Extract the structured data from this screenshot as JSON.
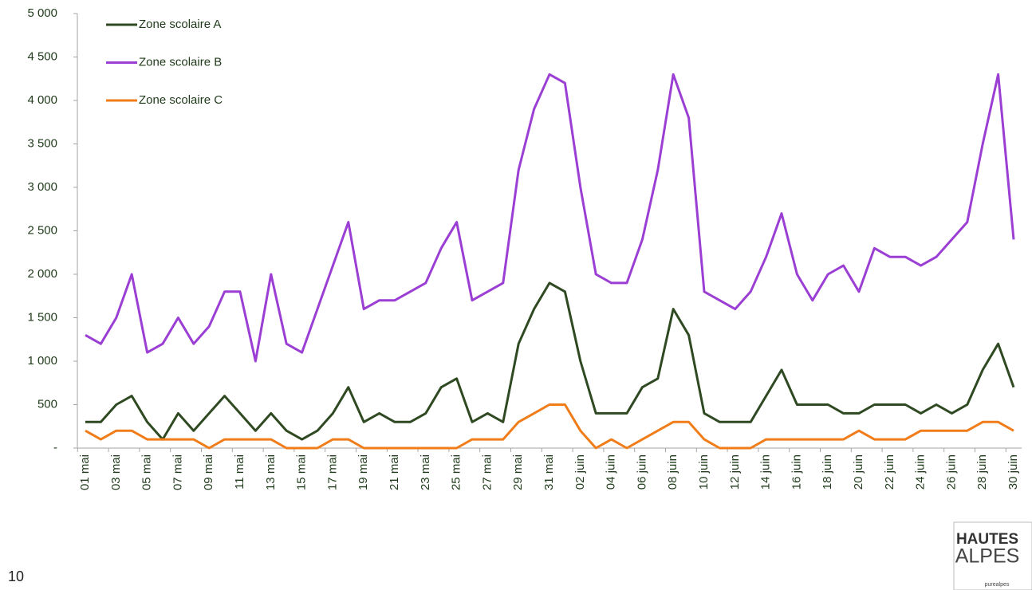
{
  "chart_data": {
    "type": "line",
    "categories": [
      "01 mai",
      null,
      "03 mai",
      null,
      "05 mai",
      null,
      "07 mai",
      null,
      "09 mai",
      null,
      "11 mai",
      null,
      "13 mai",
      null,
      "15 mai",
      null,
      "17 mai",
      null,
      "19 mai",
      null,
      "21 mai",
      null,
      "23 mai",
      null,
      "25 mai",
      null,
      "27 mai",
      null,
      "29 mai",
      null,
      "31 mai",
      null,
      "02 juin",
      null,
      "04 juin",
      null,
      "06 juin",
      null,
      "08 juin",
      null,
      "10 juin",
      null,
      "12 juin",
      null,
      "14 juin",
      null,
      "16 juin",
      null,
      "18 juin",
      null,
      "20 juin",
      null,
      "22 juin",
      null,
      "24 juin",
      null,
      "26 juin",
      null,
      "28 juin",
      null,
      "30 juin"
    ],
    "series": [
      {
        "name": "Zone scolaire A",
        "color": "#2f4a22",
        "values": [
          300,
          300,
          500,
          600,
          300,
          100,
          400,
          200,
          400,
          600,
          400,
          200,
          400,
          200,
          100,
          200,
          400,
          700,
          300,
          400,
          300,
          300,
          400,
          700,
          800,
          300,
          400,
          300,
          1200,
          1600,
          1900,
          1800,
          1000,
          400,
          400,
          400,
          700,
          800,
          1600,
          1300,
          400,
          300,
          300,
          300,
          600,
          900,
          500,
          500,
          500,
          400,
          400,
          500,
          500,
          500,
          400,
          500,
          400,
          500,
          900,
          1200,
          700
        ]
      },
      {
        "name": "Zone scolaire B",
        "color": "#9b3fd4",
        "values": [
          1300,
          1200,
          1500,
          2000,
          1100,
          1200,
          1500,
          1200,
          1400,
          1800,
          1800,
          1000,
          2000,
          1200,
          1100,
          1600,
          2100,
          2600,
          1600,
          1700,
          1700,
          1800,
          1900,
          2300,
          2600,
          1700,
          1800,
          1900,
          3200,
          3900,
          4300,
          4200,
          3000,
          2000,
          1900,
          1900,
          2400,
          3200,
          4300,
          3800,
          1800,
          1700,
          1600,
          1800,
          2200,
          2700,
          2000,
          1700,
          2000,
          2100,
          1800,
          2300,
          2200,
          2200,
          2100,
          2200,
          2400,
          2600,
          3500,
          4300,
          2400
        ]
      },
      {
        "name": "Zone scolaire C",
        "color": "#f07d1a",
        "values": [
          200,
          100,
          200,
          200,
          100,
          100,
          100,
          100,
          0,
          100,
          100,
          100,
          100,
          0,
          0,
          0,
          100,
          100,
          0,
          0,
          0,
          0,
          0,
          0,
          0,
          100,
          100,
          100,
          300,
          400,
          500,
          500,
          200,
          0,
          100,
          0,
          100,
          200,
          300,
          300,
          100,
          0,
          0,
          0,
          100,
          100,
          100,
          100,
          100,
          100,
          200,
          100,
          100,
          100,
          200,
          200,
          200,
          200,
          300,
          300,
          200
        ]
      }
    ],
    "ylim": [
      0,
      5000
    ],
    "yticks": [
      {
        "value": 0,
        "label": "-"
      },
      500,
      {
        "value": 1000,
        "label": "1 000"
      },
      {
        "value": 1500,
        "label": "1 500"
      },
      {
        "value": 2000,
        "label": "2 000"
      },
      {
        "value": 2500,
        "label": "2 500"
      },
      {
        "value": 3000,
        "label": "3 000"
      },
      {
        "value": 3500,
        "label": "3 500"
      },
      {
        "value": 4000,
        "label": "4 000"
      },
      {
        "value": 4500,
        "label": "4 500"
      },
      {
        "value": 5000,
        "label": "5 000"
      }
    ],
    "legend": "upper left",
    "grid": false
  },
  "page_number": "10",
  "logo": {
    "line1": "HAUTES",
    "line2": "ALPES",
    "tagline": "purealpes"
  }
}
